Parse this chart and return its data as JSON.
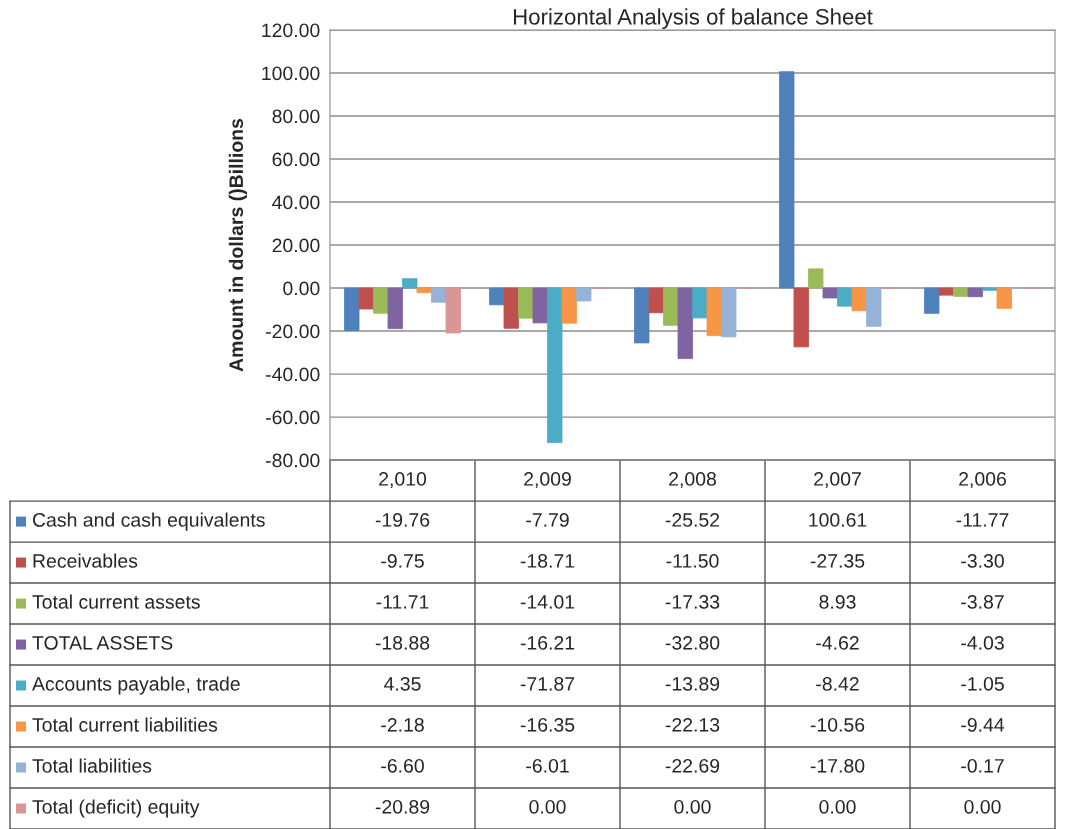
{
  "chart_data": {
    "type": "bar",
    "title": "Horizontal Analysis of balance Sheet",
    "ylabel": "Amount in dollars ()Billions",
    "categories": [
      "2,010",
      "2,009",
      "2,008",
      "2,007",
      "2,006"
    ],
    "series": [
      {
        "name": "Cash and cash equivalents",
        "color": "#4f81bd",
        "values": [
          -19.76,
          -7.79,
          -25.52,
          100.61,
          -11.77
        ],
        "value_labels": [
          "-19.76",
          "-7.79",
          "-25.52",
          "100.61",
          "-11.77"
        ]
      },
      {
        "name": "Receivables",
        "color": "#c0504d",
        "values": [
          -9.75,
          -18.71,
          -11.5,
          -27.35,
          -3.3
        ],
        "value_labels": [
          "-9.75",
          "-18.71",
          "-11.50",
          "-27.35",
          "-3.30"
        ]
      },
      {
        "name": "Total current assets",
        "color": "#9bbb59",
        "values": [
          -11.71,
          -14.01,
          -17.33,
          8.93,
          -3.87
        ],
        "value_labels": [
          "-11.71",
          "-14.01",
          "-17.33",
          "8.93",
          "-3.87"
        ]
      },
      {
        "name": "TOTAL ASSETS",
        "color": "#8064a2",
        "values": [
          -18.88,
          -16.21,
          -32.8,
          -4.62,
          -4.03
        ],
        "value_labels": [
          "-18.88",
          "-16.21",
          "-32.80",
          "-4.62",
          "-4.03"
        ]
      },
      {
        "name": "Accounts payable, trade",
        "color": "#4bacc6",
        "values": [
          4.35,
          -71.87,
          -13.89,
          -8.42,
          -1.05
        ],
        "value_labels": [
          "4.35",
          "-71.87",
          "-13.89",
          "-8.42",
          "-1.05"
        ]
      },
      {
        "name": "Total current liabilities",
        "color": "#f79646",
        "values": [
          -2.18,
          -16.35,
          -22.13,
          -10.56,
          -9.44
        ],
        "value_labels": [
          "-2.18",
          "-16.35",
          "-22.13",
          "-10.56",
          "-9.44"
        ]
      },
      {
        "name": "Total liabilities",
        "color": "#95b3d7",
        "values": [
          -6.6,
          -6.01,
          -22.69,
          -17.8,
          -0.17
        ],
        "value_labels": [
          "-6.60",
          "-6.01",
          "-22.69",
          "-17.80",
          "-0.17"
        ]
      },
      {
        "name": "Total (deficit) equity",
        "color": "#d99694",
        "values": [
          -20.89,
          0.0,
          0.0,
          0.0,
          0.0
        ],
        "value_labels": [
          "-20.89",
          "0.00",
          "0.00",
          "0.00",
          "0.00"
        ]
      }
    ],
    "ylim": [
      -80,
      120
    ],
    "yticks": [
      {
        "value": -80,
        "label": "-80.00"
      },
      {
        "value": -60,
        "label": "-60.00"
      },
      {
        "value": -40,
        "label": "-40.00"
      },
      {
        "value": -20,
        "label": "-20.00"
      },
      {
        "value": 0,
        "label": "0.00"
      },
      {
        "value": 20,
        "label": "20.00"
      },
      {
        "value": 40,
        "label": "40.00"
      },
      {
        "value": 60,
        "label": "60.00"
      },
      {
        "value": 80,
        "label": "80.00"
      },
      {
        "value": 100,
        "label": "100.00"
      },
      {
        "value": 120,
        "label": "120.00"
      }
    ],
    "grid": "y",
    "legend": "bottom"
  }
}
